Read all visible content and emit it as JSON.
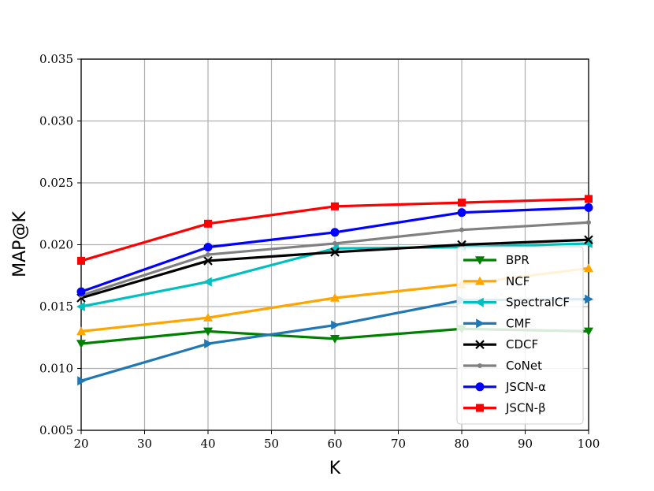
{
  "chart_data": {
    "type": "line",
    "title": "",
    "xlabel": "K",
    "ylabel": "MAP@K",
    "x": [
      20,
      40,
      60,
      80,
      100
    ],
    "xlim": [
      20,
      100
    ],
    "ylim": [
      0.005,
      0.035
    ],
    "xticks": [
      "20",
      "30",
      "40",
      "50",
      "60",
      "70",
      "80",
      "90",
      "100"
    ],
    "yticks": [
      "0.005",
      "0.010",
      "0.015",
      "0.020",
      "0.025",
      "0.030",
      "0.035"
    ],
    "grid": true,
    "legend_position": "lower-right",
    "series": [
      {
        "name": "BPR",
        "color": "#008000",
        "marker": "triangle-down",
        "values": [
          0.012,
          0.013,
          0.0124,
          0.0132,
          0.013
        ]
      },
      {
        "name": "NCF",
        "color": "#FFA500",
        "marker": "triangle-up",
        "values": [
          0.013,
          0.0141,
          0.0157,
          0.0168,
          0.0181
        ]
      },
      {
        "name": "SpectralCF",
        "color": "#00BFBF",
        "marker": "triangle-left",
        "values": [
          0.015,
          0.017,
          0.0197,
          0.0198,
          0.0201
        ]
      },
      {
        "name": "CMF",
        "color": "#1F77B4",
        "marker": "triangle-right",
        "values": [
          0.009,
          0.012,
          0.0135,
          0.0155,
          0.0156
        ]
      },
      {
        "name": "CDCF",
        "color": "#000000",
        "marker": "x",
        "values": [
          0.0157,
          0.0187,
          0.0194,
          0.02,
          0.0204
        ]
      },
      {
        "name": "CoNet",
        "color": "#808080",
        "marker": "point",
        "values": [
          0.0159,
          0.0192,
          0.0201,
          0.0212,
          0.0218
        ]
      },
      {
        "name": "JSCN-α",
        "color": "#0000FF",
        "marker": "circle",
        "values": [
          0.0162,
          0.0198,
          0.021,
          0.0226,
          0.023
        ]
      },
      {
        "name": "JSCN-β",
        "color": "#FF0000",
        "marker": "square",
        "values": [
          0.0187,
          0.0217,
          0.0231,
          0.0234,
          0.0237
        ]
      }
    ]
  }
}
